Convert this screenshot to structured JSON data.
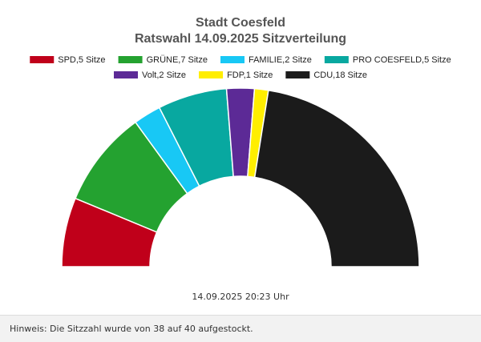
{
  "chart_data": {
    "type": "parliament",
    "title": "Stadt Coesfeld",
    "subtitle": "Ratswahl 14.09.2025 Sitzverteilung",
    "total_seats": 40,
    "series": [
      {
        "name": "SPD,5 Sitze",
        "party": "SPD",
        "value": 5,
        "color": "#c0001a"
      },
      {
        "name": "GRÜNE,7 Sitze",
        "party": "GRÜNE",
        "value": 7,
        "color": "#24a230"
      },
      {
        "name": "FAMILIE,2 Sitze",
        "party": "FAMILIE",
        "value": 2,
        "color": "#18c8f5"
      },
      {
        "name": "PRO COESFELD,5 Sitze",
        "party": "PRO COESFELD",
        "value": 5,
        "color": "#08a8a0"
      },
      {
        "name": "Volt,2 Sitze",
        "party": "Volt",
        "value": 2,
        "color": "#5c2a96"
      },
      {
        "name": "FDP,1 Sitze",
        "party": "FDP",
        "value": 1,
        "color": "#ffee00"
      },
      {
        "name": "CDU,18 Sitze",
        "party": "CDU",
        "value": 18,
        "color": "#1b1b1b"
      }
    ],
    "legend_position": "top"
  },
  "footer": {
    "timestamp": "14.09.2025 20:23 Uhr",
    "note": "Hinweis: Die Sitzzahl wurde von 38 auf 40 aufgestockt."
  }
}
